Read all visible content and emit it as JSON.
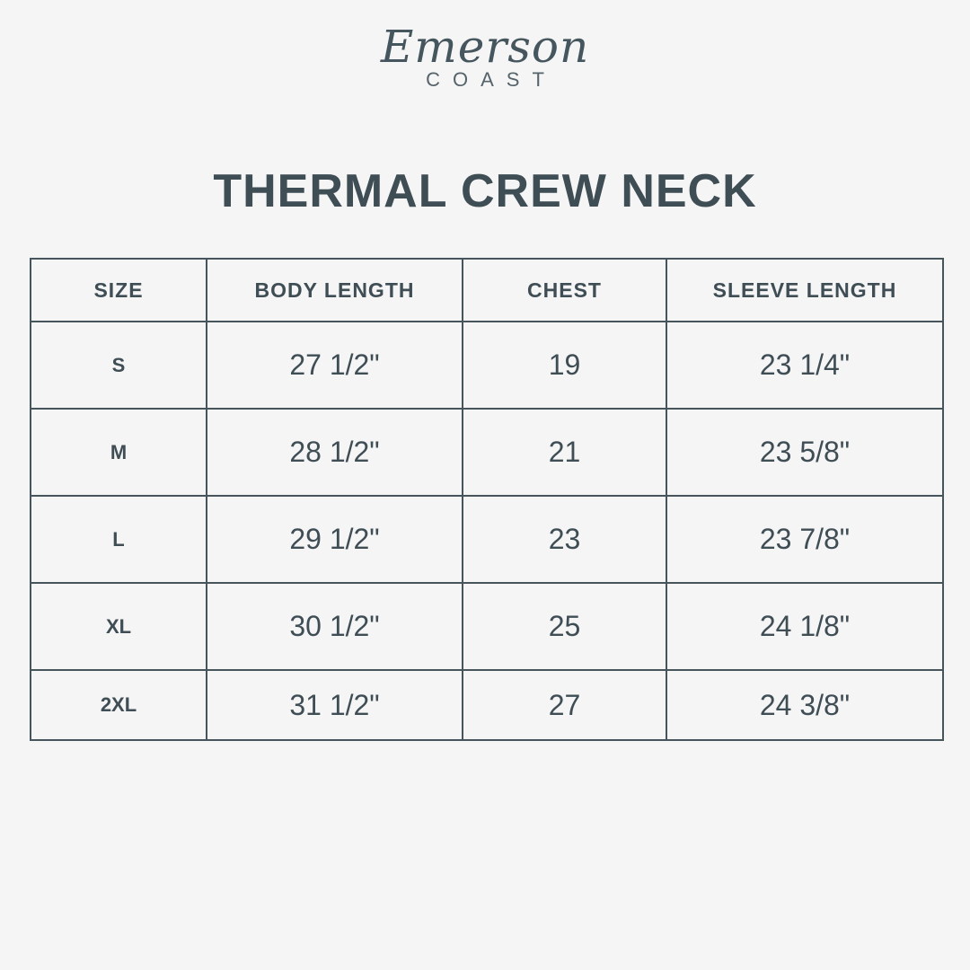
{
  "logo": {
    "script": "Emerson",
    "sub": "COAST"
  },
  "title": "THERMAL CREW NECK",
  "table": {
    "headers": [
      "SIZE",
      "BODY LENGTH",
      "CHEST",
      "SLEEVE LENGTH"
    ],
    "rows": [
      [
        "S",
        "27 1/2\"",
        "19",
        "23 1/4\""
      ],
      [
        "M",
        "28 1/2\"",
        "21",
        "23 5/8\""
      ],
      [
        "L",
        "29 1/2\"",
        "23",
        "23 7/8\""
      ],
      [
        "XL",
        "30 1/2\"",
        "25",
        "24 1/8\""
      ],
      [
        "2XL",
        "31 1/2\"",
        "27",
        "24 3/8\""
      ]
    ]
  },
  "colors": {
    "text": "#3f4d55",
    "background": "#f5f5f5",
    "border": "#46545c"
  }
}
